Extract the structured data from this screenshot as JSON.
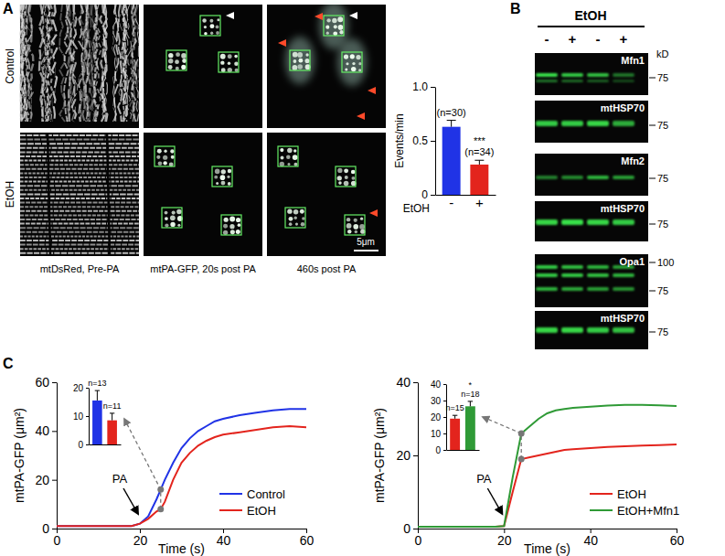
{
  "figure": {
    "panel_labels": [
      "A",
      "B",
      "C"
    ],
    "images": {
      "rows": [
        "Control",
        "EtOH"
      ],
      "captions": [
        "mtDsRed, Pre-PA",
        "mtPA-GFP, 20s post PA",
        "460s post PA"
      ],
      "scale_bar": "5μm"
    },
    "blots": {
      "header": "EtOH",
      "lanes": [
        "-",
        "+",
        "-",
        "+"
      ],
      "unit": "kD",
      "groups": [
        {
          "label": "Mfn1",
          "markers": [
            75
          ]
        },
        {
          "label": "mtHSP70",
          "markers": [
            75
          ]
        },
        {
          "label": "Mfn2",
          "markers": [
            75
          ]
        },
        {
          "label": "mtHSP70",
          "markers": [
            75
          ]
        },
        {
          "label": "Opa1",
          "markers": [
            100,
            75
          ]
        },
        {
          "label": "mtHSP70",
          "markers": [
            75
          ]
        }
      ]
    }
  },
  "chart_data": [
    {
      "type": "bar",
      "categories": [
        "-",
        "+"
      ],
      "values": [
        0.63,
        0.28
      ],
      "errors": [
        0.06,
        0.04
      ],
      "colors": [
        "#2033e6",
        "#e3241d"
      ],
      "x_label": "EtOH",
      "y_label": "Events/min",
      "ylim": [
        0,
        1
      ],
      "yticks": [
        0,
        0.5,
        {
          "value": 1,
          "label": "1.0"
        }
      ],
      "annotations": [
        {
          "text": "(n=30)",
          "bar": 0
        },
        {
          "text": "***",
          "bar": 1
        },
        {
          "text": "(n=34)",
          "bar": 1
        }
      ]
    },
    {
      "type": "line",
      "x": [
        0,
        10,
        18,
        20,
        22,
        24,
        25,
        26,
        28,
        30,
        32,
        34,
        36,
        38,
        40,
        44,
        48,
        52,
        56,
        60
      ],
      "series": [
        {
          "name": "Control",
          "color": "#2033e6",
          "values": [
            1,
            1,
            1,
            2,
            5,
            12,
            16,
            20,
            27,
            33,
            37,
            40,
            42,
            44,
            45,
            46.5,
            47.5,
            48.5,
            49,
            49
          ]
        },
        {
          "name": "EtOH",
          "color": "#e3241d",
          "values": [
            1,
            1,
            1,
            2,
            4,
            7,
            8,
            11,
            20,
            27,
            31,
            34,
            36,
            37.5,
            38.5,
            39.5,
            40.5,
            41.5,
            42,
            41.5
          ]
        }
      ],
      "xlim": [
        0,
        60
      ],
      "ylim": [
        0,
        60
      ],
      "xticks": [
        0,
        20,
        40,
        60
      ],
      "yticks": [
        0,
        20,
        40,
        60
      ],
      "x_label": "Time (s)",
      "y_label": "mtPA-GFP (μm²)",
      "legend": "lower right",
      "annotations": [
        {
          "text": "PA",
          "x": 20
        }
      ],
      "highlight_x": 25
    },
    {
      "type": "bar",
      "categories": [
        null,
        null
      ],
      "values": [
        15.5,
        8.5
      ],
      "errors": [
        3.5,
        2.5
      ],
      "colors": [
        "#2033e6",
        "#e3241d"
      ],
      "ylim": [
        0,
        20
      ],
      "yticks": [
        0,
        10,
        20
      ],
      "annotations": [
        {
          "text": "n=13",
          "bar": 0
        },
        {
          "text": "n=11",
          "bar": 1
        }
      ]
    },
    {
      "type": "line",
      "x": [
        0,
        10,
        18,
        20,
        22,
        24,
        26,
        28,
        30,
        32,
        34,
        36,
        40,
        44,
        48,
        52,
        56,
        60
      ],
      "series": [
        {
          "name": "EtOH",
          "color": "#e3241d",
          "values": [
            0.5,
            0.5,
            0.5,
            0.7,
            10,
            19,
            19.5,
            20,
            20.5,
            21,
            21.5,
            21.7,
            22,
            22.3,
            22.5,
            22.7,
            22.8,
            23
          ]
        },
        {
          "name": "EtOH+Mfn1",
          "color": "#2f9a36",
          "values": [
            0.5,
            0.5,
            0.5,
            0.7,
            14,
            26,
            28,
            30,
            31.5,
            32.3,
            32.7,
            33,
            33.3,
            33.6,
            33.8,
            33.8,
            33.7,
            33.5
          ]
        }
      ],
      "xlim": [
        0,
        60
      ],
      "ylim": [
        0,
        40
      ],
      "xticks": [
        0,
        20,
        40,
        60
      ],
      "yticks": [
        0,
        20,
        40
      ],
      "x_label": "Time (s)",
      "y_label": "mtPA-GFP (μm²)",
      "legend": "lower right",
      "annotations": [
        {
          "text": "PA",
          "x": 20
        }
      ],
      "highlight_x": 24
    },
    {
      "type": "bar",
      "categories": [
        null,
        null
      ],
      "values": [
        19,
        26.5
      ],
      "errors": [
        2,
        3
      ],
      "colors": [
        "#e3241d",
        "#2f9a36"
      ],
      "ylim": [
        0,
        40
      ],
      "yticks": [
        0,
        10,
        20,
        30,
        40
      ],
      "annotations": [
        {
          "text": "n=15",
          "bar": 0
        },
        {
          "text": "*",
          "bar": 1
        },
        {
          "text": "n=18",
          "bar": 1
        }
      ]
    }
  ]
}
